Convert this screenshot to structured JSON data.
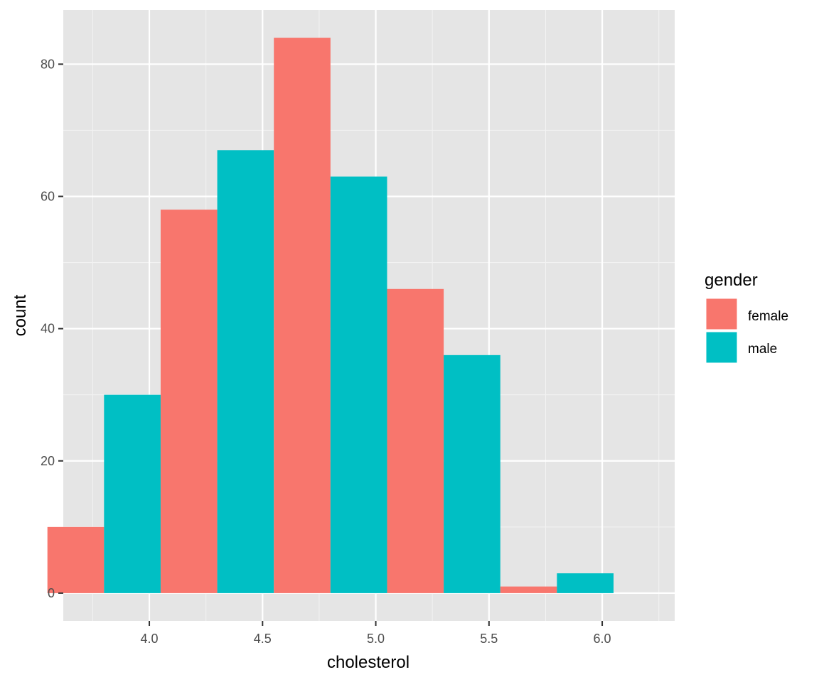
{
  "chart_data": {
    "type": "bar",
    "subtype": "histogram-dodged",
    "xlabel": "cholesterol",
    "ylabel": "count",
    "xlim": [
      3.62,
      6.32
    ],
    "ylim": [
      -4.2,
      88.2
    ],
    "x_ticks": [
      4.0,
      4.5,
      5.0,
      5.5,
      6.0
    ],
    "x_tick_labels": [
      "4.0",
      "4.5",
      "5.0",
      "5.5",
      "6.0"
    ],
    "y_ticks": [
      0,
      20,
      40,
      60,
      80
    ],
    "y_tick_labels": [
      "0",
      "20",
      "40",
      "60",
      "80"
    ],
    "bin_width": 0.25,
    "bin_centers": [
      3.8,
      4.3,
      4.8,
      5.3,
      5.8
    ],
    "series": [
      {
        "name": "female",
        "color": "#F8766D",
        "values": [
          10,
          58,
          84,
          46,
          1
        ]
      },
      {
        "name": "male",
        "color": "#00BFC4",
        "values": [
          30,
          67,
          63,
          36,
          3
        ]
      }
    ],
    "legend": {
      "title": "gender",
      "position": "right"
    },
    "grid": true,
    "panel_background": "#EBEBEB",
    "grid_color": "#FFFFFF"
  }
}
